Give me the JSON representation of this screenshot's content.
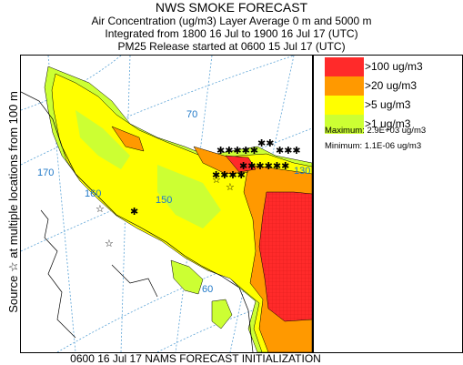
{
  "header": {
    "title": "NWS SMOKE FORECAST",
    "line1": "Air Concentration (ug/m3) Layer Average    0 m and  5000 m",
    "line2": "Integrated from 1800 16 Jul to 1900 16 Jul 17 (UTC)",
    "line3": "PM25 Release started at 0600 15 Jul 17 (UTC)"
  },
  "side_label": "Source ☆ at multiple locations   from   100 m",
  "footer": "0600 16 Jul 17 NAMS FORECAST INITIALIZATION",
  "map": {
    "grid_labels": [
      "170",
      "160",
      "150",
      "70",
      "60",
      "130"
    ],
    "colors": {
      "grid": "#5ba3d6",
      "coast": "#000000"
    }
  },
  "legend": {
    "items": [
      {
        "label": ">100 ug/m3",
        "color": "#ff2a2a"
      },
      {
        "label": ">20 ug/m3",
        "color": "#ff9900"
      },
      {
        "label": ">5 ug/m3",
        "color": "#ffff00"
      },
      {
        "label": ">1 ug/m3",
        "color": "#ccff33"
      }
    ],
    "maximum": "Maximum: 2.9E+03 ug/m3",
    "minimum": "Minimum: 1.1E-06 ug/m3"
  }
}
